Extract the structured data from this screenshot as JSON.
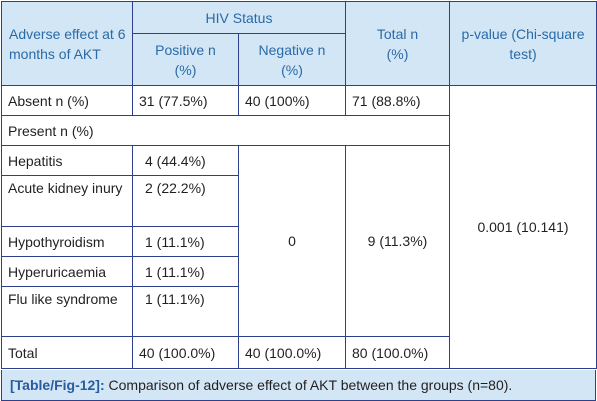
{
  "header": {
    "col1": "Adverse effect at 6 months of AKT",
    "hiv_status": "HIV Status",
    "positive": "Positive n (%)",
    "negative": "Negative n (%)",
    "total": "Total n (%)",
    "pvalue": "p-value (Chi-square test)"
  },
  "rows": {
    "absent": {
      "label": "Absent n (%)",
      "positive": "31 (77.5%)",
      "negative": "40 (100%)",
      "total": "71 (88.8%)"
    },
    "present_label": "Present n (%)",
    "hepatitis": {
      "label": "Hepatitis",
      "positive": "4 (44.4%)"
    },
    "aki": {
      "label": "Acute kidney inury",
      "positive": "2 (22.2%)"
    },
    "hypothyroidism": {
      "label": "Hypothyroidism",
      "positive": "1 (11.1%)"
    },
    "hyperuricaemia": {
      "label": "Hyperuricaemia",
      "positive": "1 (11.1%)"
    },
    "flu": {
      "label": "Flu like syndrome",
      "positive": "1 (11.1%)"
    },
    "merged": {
      "negative": "0",
      "total": "9 (11.3%)",
      "pvalue": "0.001 (10.141)"
    },
    "total": {
      "label": "Total",
      "positive": "40 (100.0%)",
      "negative": "40 (100.0%)",
      "total": "80 (100.0%)"
    }
  },
  "caption": {
    "ref": "[Table/Fig-12]:",
    "text": " Comparison of adverse effect of AKT between the groups (n=80)."
  }
}
